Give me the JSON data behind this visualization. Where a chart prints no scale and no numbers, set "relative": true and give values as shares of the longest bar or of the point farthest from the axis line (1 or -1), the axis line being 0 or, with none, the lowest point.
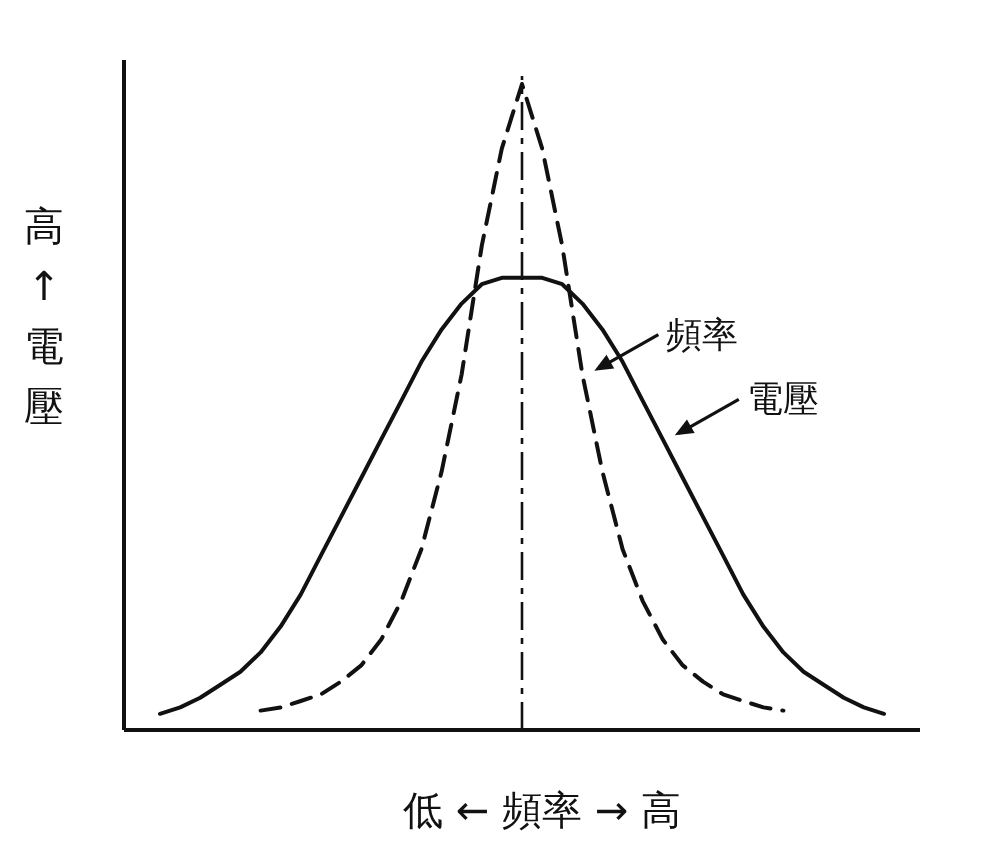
{
  "chart_data": {
    "type": "line",
    "relative": true,
    "xlabel": "低 ← 頻率 → 高",
    "ylabel": "高 ↑ 電壓",
    "annotations": [
      "電壓",
      "頻率"
    ],
    "categories": [
      null,
      null,
      null,
      null,
      null,
      null,
      null,
      null,
      null,
      null,
      null,
      null,
      null,
      null,
      null,
      null,
      null,
      null,
      null,
      null,
      null,
      null,
      null,
      null,
      null,
      null,
      null,
      null,
      null,
      null,
      null,
      null,
      null,
      null,
      null,
      null,
      null
    ],
    "series": [
      {
        "color": "#111111",
        "line_style": "solid",
        "values": [
          0.025,
          0.035,
          0.05,
          0.07,
          0.09,
          0.12,
          0.16,
          0.21,
          0.27,
          0.33,
          0.39,
          0.45,
          0.51,
          0.57,
          0.62,
          0.66,
          0.69,
          0.7,
          0.7,
          0.7,
          0.69,
          0.66,
          0.62,
          0.57,
          0.51,
          0.45,
          0.39,
          0.33,
          0.27,
          0.21,
          0.16,
          0.12,
          0.09,
          0.07,
          0.05,
          0.035,
          0.025
        ]
      },
      {
        "color": "#111111",
        "line_style": "dashed",
        "values": [
          null,
          null,
          null,
          null,
          null,
          0.03,
          0.035,
          0.045,
          0.055,
          0.075,
          0.1,
          0.14,
          0.2,
          0.28,
          0.4,
          0.55,
          0.75,
          0.9,
          1.0,
          0.9,
          0.75,
          0.55,
          0.4,
          0.28,
          0.2,
          0.14,
          0.1,
          0.075,
          0.055,
          0.045,
          0.035,
          0.03,
          null,
          null,
          null,
          null,
          null
        ]
      }
    ]
  }
}
